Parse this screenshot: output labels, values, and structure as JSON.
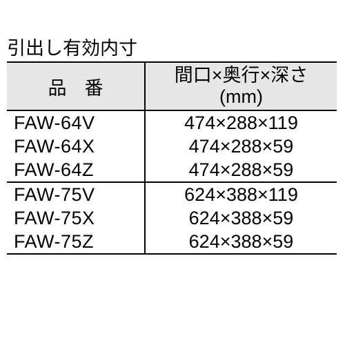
{
  "title": "引出し有効内寸",
  "table": {
    "header": {
      "col1": "品番",
      "col2_line1": "間口×奥行×深さ",
      "col2_line2": "(mm)"
    },
    "header_bg": "#e6e6e6",
    "border_color": "#000000",
    "font_size_pt": 20,
    "rows": [
      {
        "code": "FAW-64V",
        "dim": "474×288×119",
        "group_start": false
      },
      {
        "code": "FAW-64X",
        "dim": "474×288×59",
        "group_start": false
      },
      {
        "code": "FAW-64Z",
        "dim": "474×288×59",
        "group_start": false
      },
      {
        "code": "FAW-75V",
        "dim": "624×388×119",
        "group_start": true
      },
      {
        "code": "FAW-75X",
        "dim": "624×388×59",
        "group_start": false
      },
      {
        "code": "FAW-75Z",
        "dim": "624×388×59",
        "group_start": false
      }
    ]
  }
}
